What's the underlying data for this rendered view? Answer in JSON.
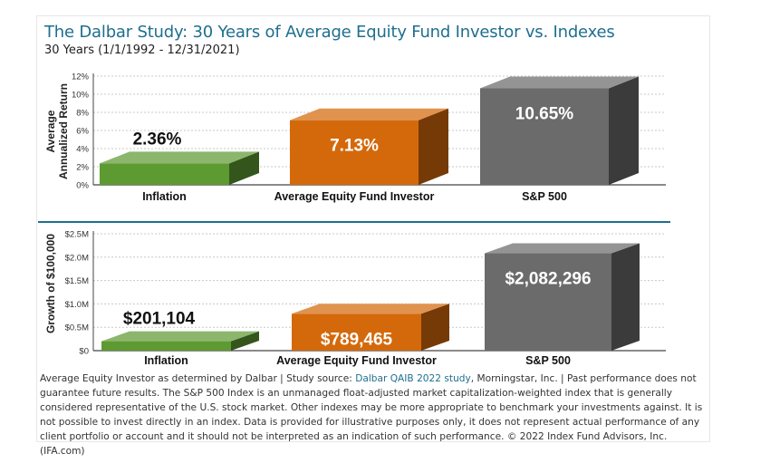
{
  "title": "The Dalbar Study: 30 Years of Average Equity Fund Investor vs. Indexes",
  "subtitle": "30 Years (1/1/1992 - 12/31/2021)",
  "chart_data": [
    {
      "type": "bar",
      "style": "3d",
      "ylabel_line1": "Average",
      "ylabel_line2": "Annualized Return",
      "ylim": [
        0,
        12
      ],
      "yticks": [
        0,
        2,
        4,
        6,
        8,
        10,
        12
      ],
      "ytick_labels": [
        "0%",
        "2%",
        "4%",
        "6%",
        "8%",
        "10%",
        "12%"
      ],
      "grid": true,
      "categories": [
        "Inflation",
        "Average Equity Fund Investor",
        "S&P 500"
      ],
      "values": [
        2.36,
        7.13,
        10.65
      ],
      "data_labels": [
        "2.36%",
        "7.13%",
        "10.65%"
      ],
      "colors": [
        "#5e9a32",
        "#d4690b",
        "#6b6b6b"
      ]
    },
    {
      "type": "bar",
      "style": "3d",
      "ylabel": "Growth of $100,000",
      "ylim": [
        0,
        2500000
      ],
      "yticks": [
        0,
        500000,
        1000000,
        1500000,
        2000000,
        2500000
      ],
      "ytick_labels": [
        "$0",
        "$0.5M",
        "$1.0M",
        "$1.5M",
        "$2.0M",
        "$2.5M"
      ],
      "grid": true,
      "categories": [
        "Inflation",
        "Average Equity Fund Investor",
        "S&P 500"
      ],
      "values": [
        201104,
        789465,
        2082296
      ],
      "data_labels": [
        "$201,104",
        "$789,465",
        "$2,082,296"
      ],
      "colors": [
        "#5e9a32",
        "#d4690b",
        "#6b6b6b"
      ]
    }
  ],
  "footer": {
    "text_before_link": "Average Equity Investor as determined by Dalbar | Study source: ",
    "link_text": "Dalbar QAIB 2022 study",
    "text_after_link": ", Morningstar, Inc. | Past performance does not guarantee future results. The S&P 500 Index is an unmanaged float-adjusted market capitalization-weighted index that is generally considered representative of the U.S. stock market. Other indexes may be more appropriate to benchmark your investments against. It is not possible to invest directly in an index. Data is provided for illustrative purposes only, it does not represent actual performance of any client portfolio or account and it should not be interpreted as an indication of such performance. © 2022 Index Fund Advisors, Inc. (IFA.com)"
  }
}
